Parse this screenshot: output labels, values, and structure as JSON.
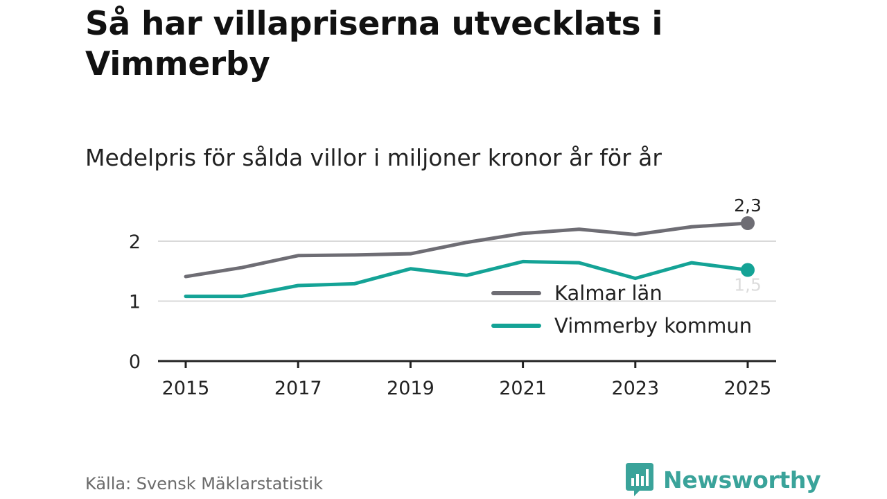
{
  "title": "Så har villapriserna utvecklats i Vimmerby",
  "subtitle": "Medelpris för sålda villor i miljoner kronor år för år",
  "source": "Källa: Svensk Mäklarstatistik",
  "brand": {
    "name": "Newsworthy",
    "color": "#3aa39a",
    "icon": "newsworthy-logo-icon"
  },
  "chart_data": {
    "type": "line",
    "title": "Så har villapriserna utvecklats i Vimmerby",
    "subtitle": "Medelpris för sålda villor i miljoner kronor år för år",
    "xlabel": "",
    "ylabel": "",
    "x": [
      2015,
      2016,
      2017,
      2018,
      2019,
      2020,
      2021,
      2022,
      2023,
      2024,
      2025
    ],
    "xticks": [
      "2015",
      "2017",
      "2019",
      "2021",
      "2023",
      "2025"
    ],
    "yticks": [
      "0",
      "1",
      "2"
    ],
    "ylim": [
      0,
      2.4
    ],
    "grid": true,
    "legend_position": "bottom-right",
    "series": [
      {
        "name": "Kalmar län",
        "color": "#6e6d74",
        "values": [
          1.41,
          1.56,
          1.76,
          1.77,
          1.79,
          1.98,
          2.13,
          2.2,
          2.11,
          2.24,
          2.3
        ],
        "end_label": "2,3"
      },
      {
        "name": "Vimmerby kommun",
        "color": "#14a396",
        "values": [
          1.08,
          1.08,
          1.26,
          1.29,
          1.54,
          1.43,
          1.66,
          1.64,
          1.38,
          1.64,
          1.52
        ],
        "end_label": "1,5"
      }
    ]
  }
}
